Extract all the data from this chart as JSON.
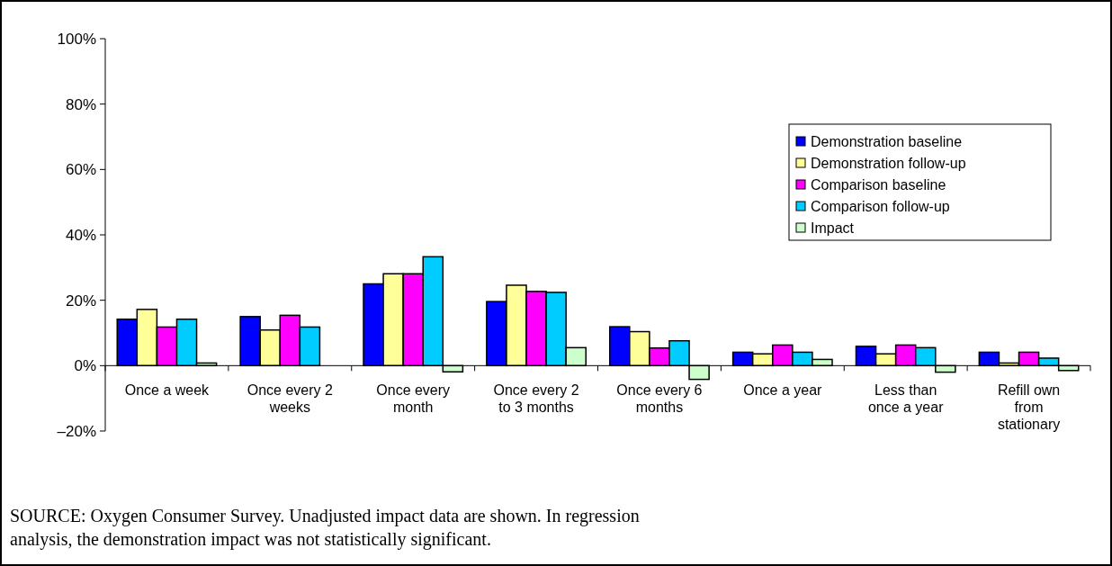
{
  "chart_data": {
    "type": "bar",
    "categories": [
      "Once a week",
      "Once every 2 weeks",
      "Once every month",
      "Once every 2 to 3 months",
      "Once every 6 months",
      "Once a year",
      "Less than once a year",
      "Refill own from stationary"
    ],
    "series": [
      {
        "name": "Demonstration baseline",
        "color": "#0000ff",
        "values": [
          14.2,
          15.0,
          25.0,
          19.6,
          11.9,
          4.1,
          5.9,
          4.1
        ]
      },
      {
        "name": "Demonstration follow-up",
        "color": "#ffff99",
        "values": [
          17.2,
          10.9,
          28.1,
          24.6,
          10.4,
          3.6,
          3.6,
          0.8
        ]
      },
      {
        "name": "Comparison baseline",
        "color": "#ff00ff",
        "values": [
          11.8,
          15.4,
          28.1,
          22.7,
          5.4,
          6.3,
          6.3,
          4.1
        ]
      },
      {
        "name": "Comparison follow-up",
        "color": "#00ccff",
        "values": [
          14.2,
          11.8,
          33.3,
          22.4,
          7.6,
          4.1,
          5.5,
          2.3
        ]
      },
      {
        "name": "Impact",
        "color": "#ccffcc",
        "values": [
          0.8,
          null,
          -1.9,
          5.5,
          -4.2,
          1.9,
          -2.0,
          -1.5
        ]
      }
    ],
    "ylim": [
      -20,
      100
    ],
    "yticks": [
      {
        "value": -20,
        "label": "–20%"
      },
      {
        "value": 0,
        "label": "0%"
      },
      {
        "value": 20,
        "label": "20%"
      },
      {
        "value": 40,
        "label": "40%"
      },
      {
        "value": 60,
        "label": "60%"
      },
      {
        "value": 80,
        "label": "80%"
      },
      {
        "value": 100,
        "label": "100%"
      }
    ],
    "grid": false,
    "legend": "right",
    "annotations": [
      "SOURCE:  Oxygen Consumer Survey.  Unadjusted impact data are shown.  In regression analysis, the demonstration impact was not statistically significant."
    ]
  }
}
